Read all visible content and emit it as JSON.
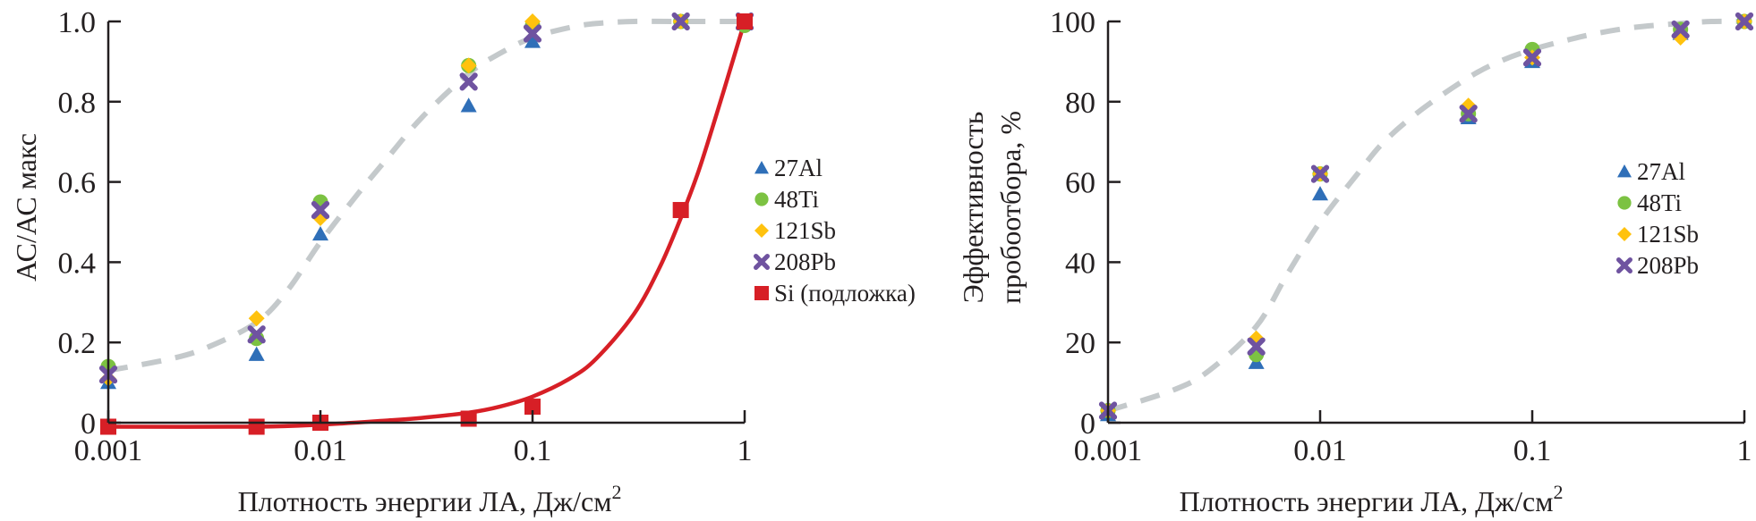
{
  "chart_data": [
    {
      "type": "scatter",
      "id": "left",
      "title": "",
      "xlabel": "Плотность энергии ЛА, Дж/см",
      "xlabel_sup": "2",
      "ylabel": "АС/АС макс",
      "xscale": "log",
      "xlim": [
        0.001,
        1
      ],
      "ylim": [
        0,
        1.0
      ],
      "xticks": [
        0.001,
        0.01,
        0.1,
        1
      ],
      "xtick_labels": [
        "0.001",
        "0.01",
        "0.1",
        "1"
      ],
      "yticks": [
        0,
        0.2,
        0.4,
        0.6,
        0.8,
        1.0
      ],
      "ytick_labels": [
        "0",
        "0.2",
        "0.4",
        "0.6",
        "0.8",
        "1.0"
      ],
      "grid": false,
      "legend_position": "right",
      "x": [
        0.001,
        0.005,
        0.01,
        0.05,
        0.1,
        0.5,
        1
      ],
      "series": [
        {
          "name": "27Al",
          "marker": "triangle",
          "color": "#2f6fb8",
          "values": [
            0.1,
            0.17,
            0.47,
            0.79,
            0.95,
            1.0,
            1.0
          ]
        },
        {
          "name": "48Ti",
          "marker": "circle",
          "color": "#7cc242",
          "values": [
            0.14,
            0.21,
            0.55,
            0.89,
            0.99,
            1.0,
            0.99
          ]
        },
        {
          "name": "121Sb",
          "marker": "diamond",
          "color": "#ffc20e",
          "values": [
            0.11,
            0.26,
            0.51,
            0.89,
            1.0,
            1.0,
            1.0
          ]
        },
        {
          "name": "208Pb",
          "marker": "x",
          "color": "#6f53a0",
          "values": [
            0.12,
            0.22,
            0.53,
            0.85,
            0.97,
            1.0,
            1.0
          ]
        },
        {
          "name": "Si (подложка)",
          "marker": "square",
          "color": "#d71f26",
          "values": [
            -0.01,
            -0.01,
            0.0,
            0.01,
            0.04,
            0.53,
            1.0
          ]
        }
      ],
      "fit_curves": [
        {
          "name": "sigmoid-fit-elements",
          "style": "dashed",
          "color": "#c4c9cb",
          "x": [
            0.001,
            0.002,
            0.003,
            0.005,
            0.007,
            0.01,
            0.015,
            0.02,
            0.03,
            0.05,
            0.07,
            0.1,
            0.15,
            0.2,
            0.3,
            0.5,
            0.7,
            1
          ],
          "y": [
            0.13,
            0.16,
            0.19,
            0.25,
            0.33,
            0.45,
            0.57,
            0.65,
            0.76,
            0.87,
            0.92,
            0.96,
            0.985,
            0.995,
            1.0,
            1.0,
            1.0,
            1.0
          ]
        },
        {
          "name": "exponential-fit-si",
          "style": "solid",
          "color": "#d71f26",
          "x": [
            0.001,
            0.005,
            0.01,
            0.02,
            0.03,
            0.05,
            0.07,
            0.1,
            0.15,
            0.2,
            0.3,
            0.4,
            0.5,
            0.6,
            0.7,
            0.8,
            0.9,
            1
          ],
          "y": [
            -0.01,
            -0.01,
            -0.005,
            0.005,
            0.012,
            0.025,
            0.04,
            0.065,
            0.11,
            0.16,
            0.27,
            0.39,
            0.51,
            0.62,
            0.73,
            0.83,
            0.92,
            1.0
          ]
        }
      ]
    },
    {
      "type": "scatter",
      "id": "right",
      "title": "",
      "xlabel": "Плотность энергии ЛА, Дж/см",
      "xlabel_sup": "2",
      "ylabel_line1": "Эффективность",
      "ylabel_line2": "пробоотбора, %",
      "xscale": "log",
      "xlim": [
        0.001,
        1
      ],
      "ylim": [
        0,
        100
      ],
      "xticks": [
        0.001,
        0.01,
        0.1,
        1
      ],
      "xtick_labels": [
        "0.001",
        "0.01",
        "0.1",
        "1"
      ],
      "yticks": [
        0,
        20,
        40,
        60,
        80,
        100
      ],
      "ytick_labels": [
        "0",
        "20",
        "40",
        "60",
        "80",
        "100"
      ],
      "grid": false,
      "legend_position": "right",
      "x": [
        0.001,
        0.005,
        0.01,
        0.05,
        0.1,
        0.5,
        1
      ],
      "series": [
        {
          "name": "27Al",
          "marker": "triangle",
          "color": "#2f6fb8",
          "values": [
            2,
            15,
            57,
            76,
            90,
            97,
            100
          ]
        },
        {
          "name": "48Ti",
          "marker": "circle",
          "color": "#7cc242",
          "values": [
            3,
            17,
            62,
            77,
            93,
            98,
            100
          ]
        },
        {
          "name": "121Sb",
          "marker": "diamond",
          "color": "#ffc20e",
          "values": [
            3,
            21,
            62,
            79,
            91,
            96,
            100
          ]
        },
        {
          "name": "208Pb",
          "marker": "x",
          "color": "#6f53a0",
          "values": [
            3,
            19,
            62,
            77,
            91,
            98,
            100
          ]
        }
      ],
      "fit_curves": [
        {
          "name": "sigmoid-fit",
          "style": "dashed",
          "color": "#c4c9cb",
          "x": [
            0.001,
            0.002,
            0.003,
            0.005,
            0.007,
            0.01,
            0.015,
            0.02,
            0.03,
            0.05,
            0.07,
            0.1,
            0.15,
            0.2,
            0.3,
            0.5,
            0.7,
            1
          ],
          "y": [
            3,
            8,
            13,
            24,
            37,
            50,
            62,
            70,
            78,
            86,
            90,
            93,
            95.5,
            97,
            98.5,
            99.5,
            100,
            100
          ]
        }
      ]
    }
  ]
}
